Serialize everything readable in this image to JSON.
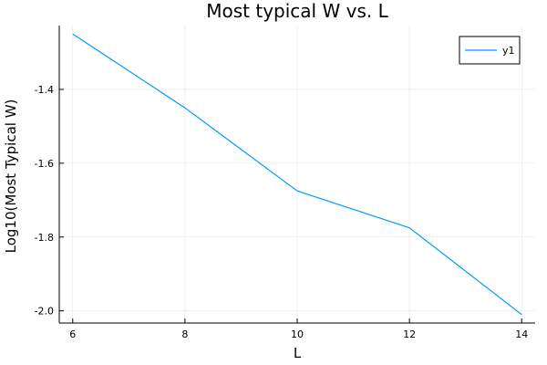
{
  "chart_data": {
    "type": "line",
    "title": "Most typical W vs. L",
    "xlabel": "L",
    "ylabel": "Log10(Most Typical W)",
    "x": [
      6,
      8,
      10,
      12,
      14
    ],
    "series": [
      {
        "name": "y1",
        "values": [
          -1.25,
          -1.45,
          -1.675,
          -1.775,
          -2.01
        ],
        "color": "#009AFA"
      }
    ],
    "xticks": [
      6,
      8,
      10,
      12,
      14
    ],
    "yticks": [
      -2.0,
      -1.8,
      -1.6,
      -1.4
    ],
    "ytick_labels": [
      "-2.0",
      "-1.8",
      "-1.6",
      "-1.4"
    ],
    "xlim": [
      5.76,
      14.24
    ],
    "ylim": [
      -2.033,
      -1.227
    ],
    "grid": true,
    "legend_position": "top-right"
  }
}
